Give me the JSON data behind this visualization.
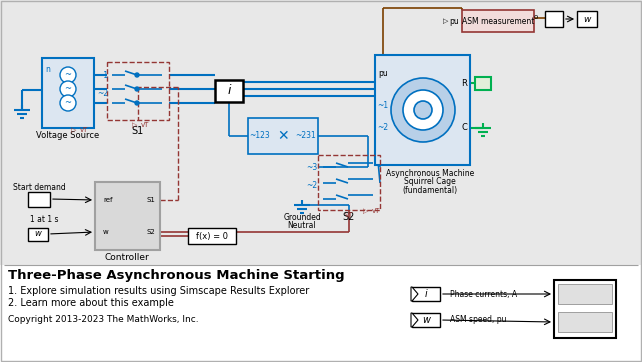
{
  "title": "Three-Phase Asynchronous Machine Starting",
  "note1": "1. Explore simulation results using Simscape Results Explorer",
  "note2": "2. Learn more about this example",
  "copyright": "Copyright 2013-2023 The MathWorks, Inc.",
  "bg_color": "#f0f0f0",
  "dblue": "#0070c0",
  "dred": "#943634",
  "green": "#00b050",
  "brown": "#7b3f00",
  "black": "#000000",
  "white": "#ffffff",
  "gray": "#808080"
}
